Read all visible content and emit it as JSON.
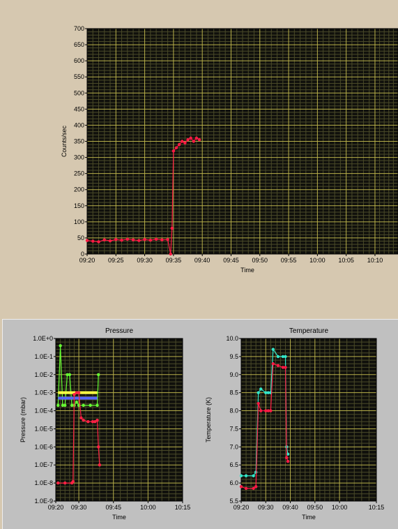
{
  "colors": {
    "plot_bg": "#10100c",
    "grid_major": "#b8b04a",
    "grid_minor": "#4a4a28",
    "counts_series": "#ff1a44",
    "pressure_green": "#66ff33",
    "pressure_yellow": "#ffff44",
    "pressure_blue": "#5566ff",
    "pressure_red": "#ff2244",
    "temp_cyan": "#33e6c8",
    "temp_red": "#ff1a44"
  },
  "chart_data": [
    {
      "id": "counts",
      "type": "scatter",
      "title": "",
      "xlabel": "Time",
      "ylabel": "Counts/sec",
      "ylim": [
        0,
        700
      ],
      "yticks": [
        "0",
        "50",
        "100",
        "150",
        "200",
        "250",
        "300",
        "350",
        "400",
        "450",
        "500",
        "550",
        "600",
        "650",
        "700"
      ],
      "xlim": [
        "09:20",
        "10:14"
      ],
      "xticks": [
        "09:20",
        "09:25",
        "09:30",
        "09:35",
        "09:40",
        "09:45",
        "09:50",
        "09:55",
        "10:00",
        "10:05",
        "10:10"
      ],
      "grid": true,
      "series": [
        {
          "color": "#ff1a44",
          "x": [
            "09:20",
            "09:21",
            "09:22",
            "09:23",
            "09:24",
            "09:25",
            "09:26",
            "09:27",
            "09:28",
            "09:29",
            "09:30",
            "09:31",
            "09:32",
            "09:33",
            "09:34",
            "09:34:30",
            "09:34:45",
            "09:35",
            "09:35:30",
            "09:36",
            "09:36:30",
            "09:37",
            "09:37:30",
            "09:38",
            "09:38:30",
            "09:39",
            "09:39:30"
          ],
          "values": [
            42,
            40,
            38,
            44,
            41,
            45,
            43,
            46,
            44,
            42,
            45,
            43,
            46,
            44,
            45,
            0,
            80,
            320,
            330,
            340,
            350,
            345,
            355,
            360,
            350,
            360,
            355
          ]
        }
      ]
    },
    {
      "id": "pressure",
      "type": "line",
      "title": "Pressure",
      "xlabel": "Time",
      "ylabel": "Pressure (mbar)",
      "yscale": "log",
      "ylim": [
        1e-09,
        1
      ],
      "yticks": [
        "1.0E-9",
        "1.0E-8",
        "1.0E-7",
        "1.0E-6",
        "1.0E-5",
        "1.0E-4",
        "1.0E-3",
        "1.0E-2",
        "1.0E-1",
        "1.0E+0"
      ],
      "xlim": [
        "09:20",
        "10:15"
      ],
      "xticks": [
        "09:20",
        "09:30",
        "09:45",
        "10:00",
        "10:15"
      ],
      "grid": true,
      "series": [
        {
          "color": "#66ff33",
          "x": [
            "09:21",
            "09:22",
            "09:23",
            "09:24",
            "09:25",
            "09:26",
            "09:27",
            "09:28",
            "09:29",
            "09:30",
            "09:32",
            "09:35",
            "09:38",
            "09:38:30"
          ],
          "values": [
            0.0002,
            0.4,
            0.0002,
            0.0002,
            0.01,
            0.01,
            0.0002,
            0.0002,
            0.0003,
            0.0002,
            0.0002,
            0.0002,
            0.0002,
            0.01
          ]
        },
        {
          "color": "#ffff44",
          "x": [
            "09:21",
            "09:38"
          ],
          "values": [
            0.001,
            0.001
          ]
        },
        {
          "color": "#5566ff",
          "x": [
            "09:21",
            "09:38"
          ],
          "values": [
            0.0005,
            0.0005
          ]
        },
        {
          "color": "#ff2244",
          "x": [
            "09:21",
            "09:24",
            "09:27",
            "09:27:30",
            "09:28",
            "09:29",
            "09:30",
            "09:31",
            "09:32",
            "09:34",
            "09:36",
            "09:37",
            "09:38",
            "09:38:30",
            "09:39"
          ],
          "values": [
            1e-08,
            1e-08,
            1e-08,
            1.2e-08,
            0.0008,
            0.001,
            0.001,
            4e-05,
            3e-05,
            2.5e-05,
            2.5e-05,
            2.5e-05,
            3e-05,
            1e-06,
            1e-07
          ]
        }
      ]
    },
    {
      "id": "temperature",
      "type": "line",
      "title": "Temperature",
      "xlabel": "Time",
      "ylabel": "Temperature (K)",
      "ylim": [
        5.5,
        10.0
      ],
      "yticks": [
        "5.5",
        "6.0",
        "6.5",
        "7.0",
        "7.5",
        "8.0",
        "8.5",
        "9.0",
        "9.5",
        "10.0"
      ],
      "xlim": [
        "09:20",
        "10:15"
      ],
      "xticks": [
        "09:20",
        "09:30",
        "09:40",
        "09:50",
        "10:00",
        "10:15"
      ],
      "grid": true,
      "series": [
        {
          "color": "#33e6c8",
          "x": [
            "09:20",
            "09:22",
            "09:25",
            "09:26",
            "09:27",
            "09:28",
            "09:30",
            "09:31",
            "09:32",
            "09:33",
            "09:35",
            "09:37",
            "09:38",
            "09:38:30",
            "09:39"
          ],
          "values": [
            6.2,
            6.2,
            6.2,
            6.3,
            8.5,
            8.6,
            8.5,
            8.5,
            8.5,
            9.7,
            9.5,
            9.5,
            9.5,
            7.0,
            6.8
          ]
        },
        {
          "color": "#ff1a44",
          "x": [
            "09:20",
            "09:22",
            "09:25",
            "09:26",
            "09:27",
            "09:28",
            "09:30",
            "09:31",
            "09:32",
            "09:33",
            "09:35",
            "09:37",
            "09:38",
            "09:38:30",
            "09:39"
          ],
          "values": [
            5.9,
            5.85,
            5.85,
            5.9,
            8.2,
            8.0,
            8.0,
            8.0,
            8.0,
            9.3,
            9.25,
            9.2,
            9.2,
            6.7,
            6.6
          ]
        }
      ]
    }
  ]
}
